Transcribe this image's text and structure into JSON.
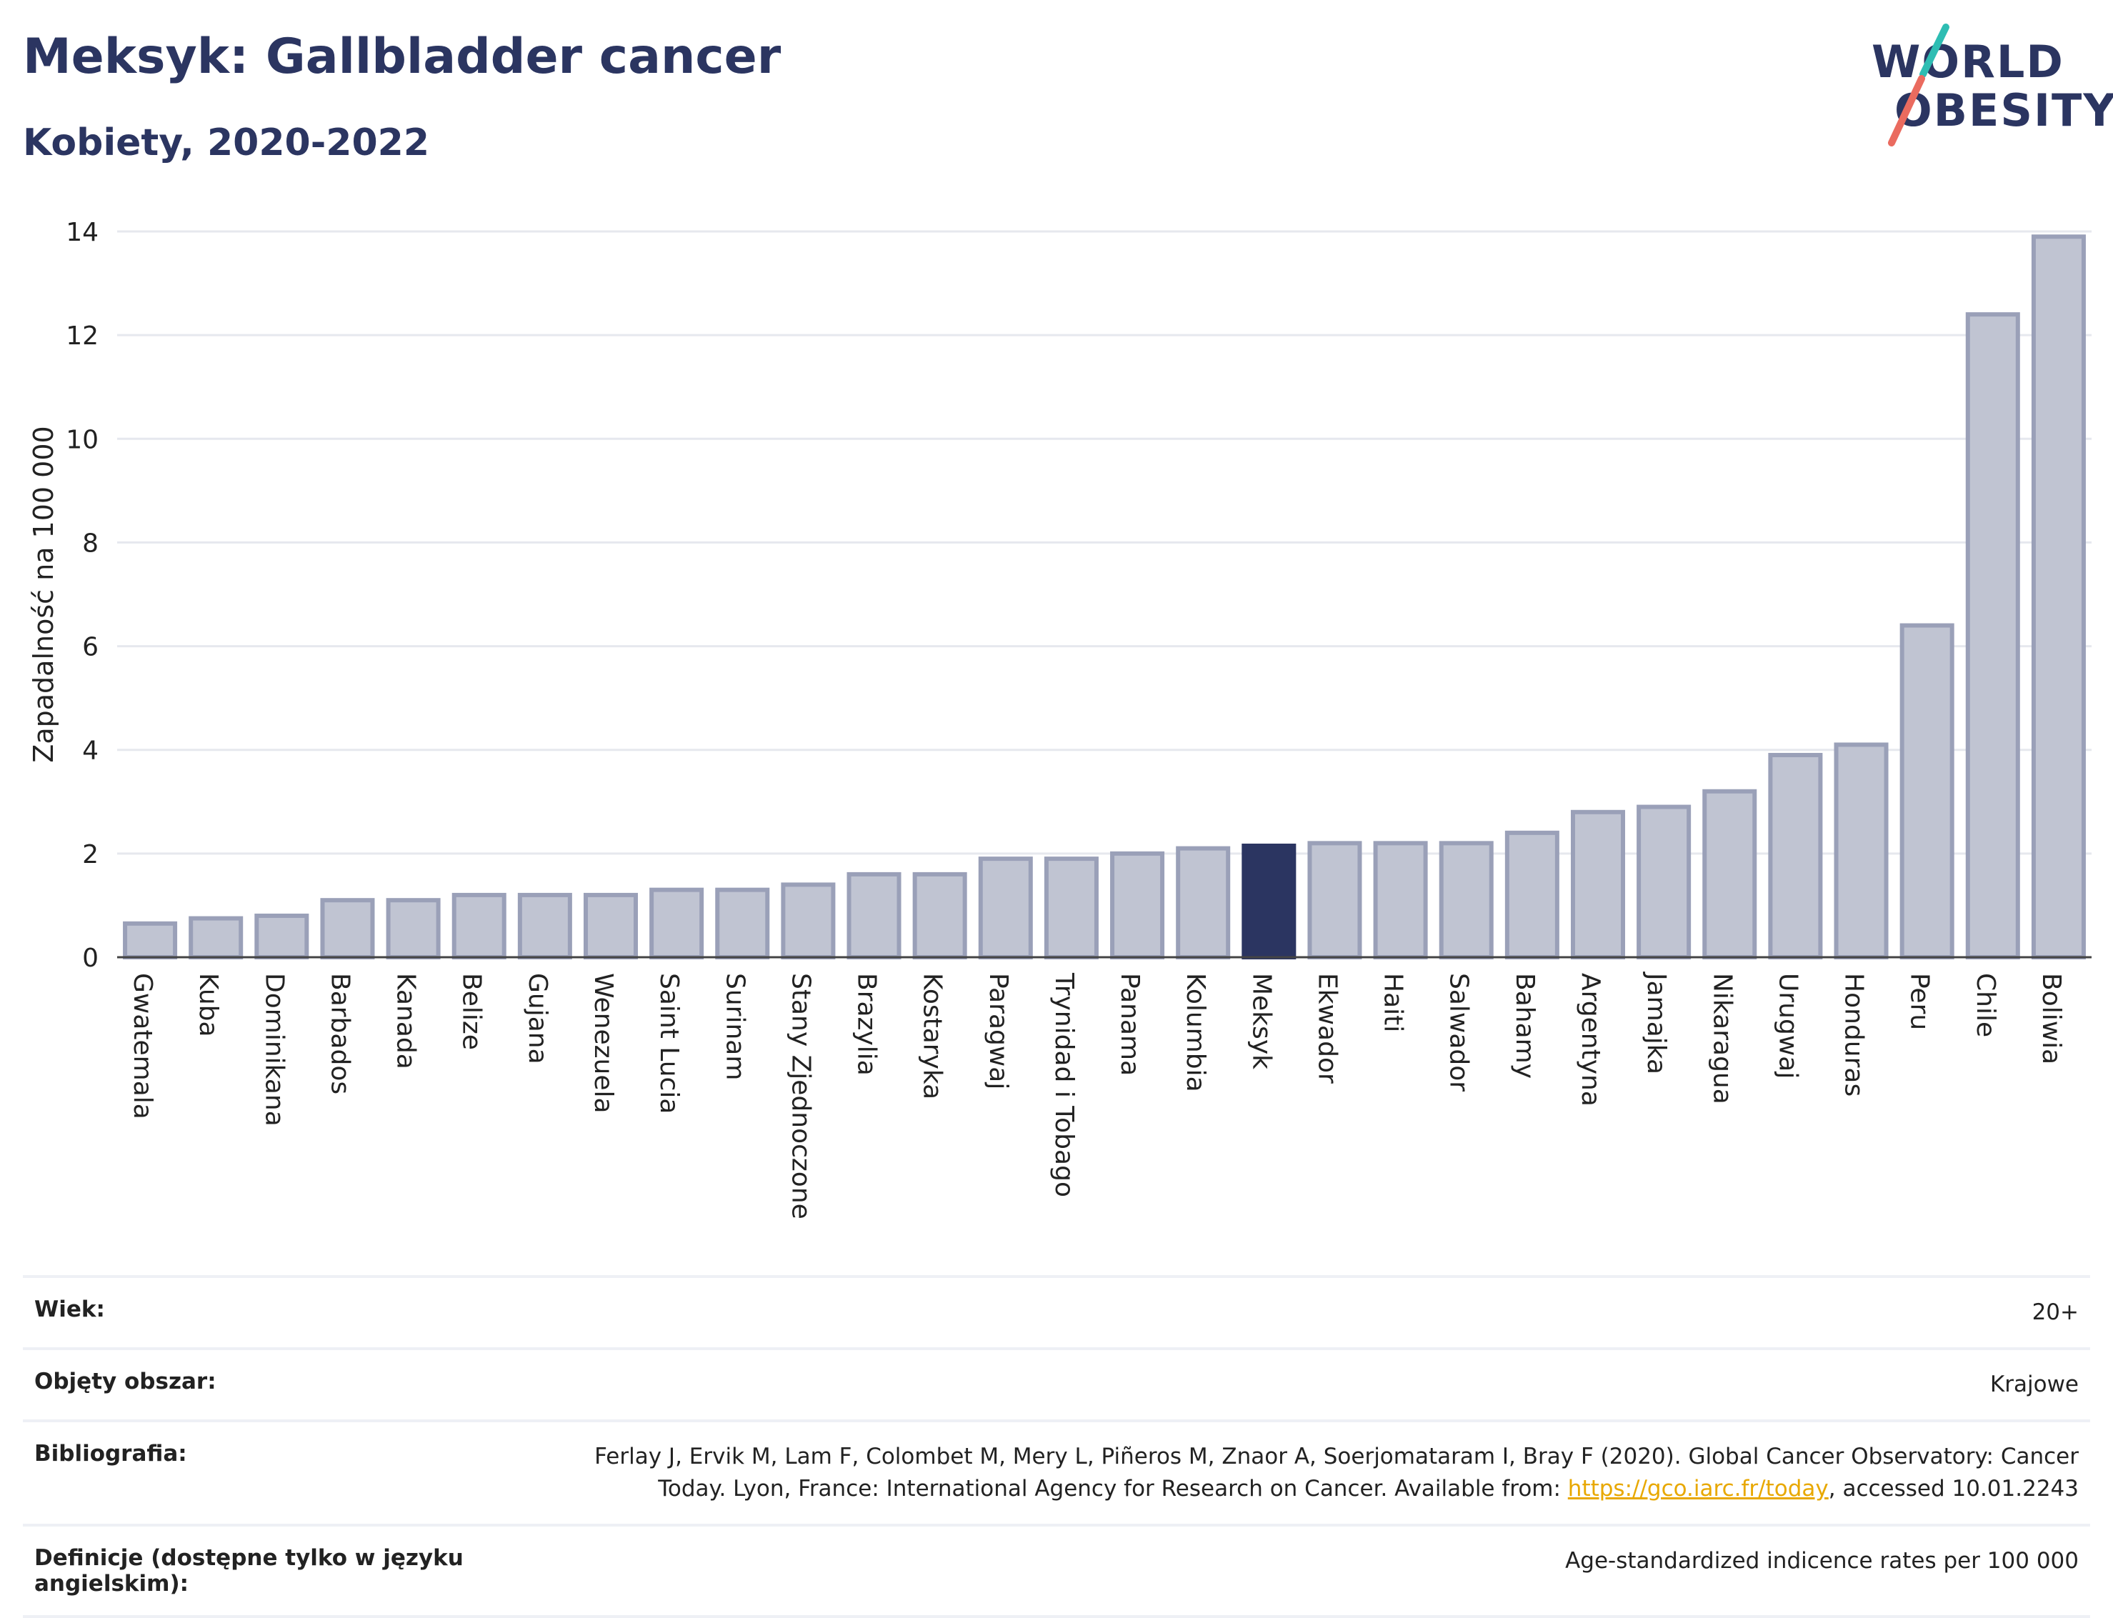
{
  "header": {
    "title": "Meksyk: Gallbladder cancer",
    "subtitle": "Kobiety, 2020-2022"
  },
  "logo": {
    "line1": "WORLD",
    "line2": "OBESITY"
  },
  "colors": {
    "highlight": "#2b3561",
    "bar": "#c0c4d2",
    "bar_stroke": "#9aa0b8",
    "grid": "#e6e8ee",
    "logo_teal": "#2ebdb3",
    "logo_coral": "#ea6b5f"
  },
  "chart_data": {
    "type": "bar",
    "ylabel": "Zapadalność na 100 000",
    "ylim": [
      0,
      14
    ],
    "yticks": [
      0,
      2,
      4,
      6,
      8,
      10,
      12,
      14
    ],
    "grid": true,
    "highlight": "Meksyk",
    "categories": [
      "Gwatemala",
      "Kuba",
      "Dominikana",
      "Barbados",
      "Kanada",
      "Belize",
      "Gujana",
      "Wenezuela",
      "Saint Lucia",
      "Surinam",
      "Stany Zjednoczone",
      "Brazylia",
      "Kostaryka",
      "Paragwaj",
      "Trynidad i Tobago",
      "Panama",
      "Kolumbia",
      "Meksyk",
      "Ekwador",
      "Haiti",
      "Salwador",
      "Bahamy",
      "Argentyna",
      "Jamajka",
      "Nikaragua",
      "Urugwaj",
      "Honduras",
      "Peru",
      "Chile",
      "Boliwia"
    ],
    "values": [
      0.65,
      0.75,
      0.8,
      1.1,
      1.1,
      1.2,
      1.2,
      1.2,
      1.3,
      1.3,
      1.4,
      1.6,
      1.6,
      1.9,
      1.9,
      2.0,
      2.1,
      2.15,
      2.2,
      2.2,
      2.2,
      2.4,
      2.8,
      2.9,
      3.2,
      3.9,
      4.1,
      6.4,
      12.4,
      13.9
    ]
  },
  "footer": {
    "rows": [
      {
        "key": "Wiek:",
        "value": "20+"
      },
      {
        "key": "Objęty obszar:",
        "value": "Krajowe"
      },
      {
        "key": "Bibliografia:",
        "value_pre": "Ferlay J, Ervik M, Lam F, Colombet M, Mery L, Piñeros M, Znaor A, Soerjomataram I, Bray F (2020). Global Cancer Observatory: Cancer Today. Lyon, France: International Agency for Research on Cancer. Available from: ",
        "link": "https://gco.iarc.fr/today",
        "value_post": ", accessed 10.01.2243"
      },
      {
        "key": "Definicje (dostępne tylko w języku angielskim):",
        "value": "Age-standardized indicence rates per 100 000"
      }
    ]
  }
}
